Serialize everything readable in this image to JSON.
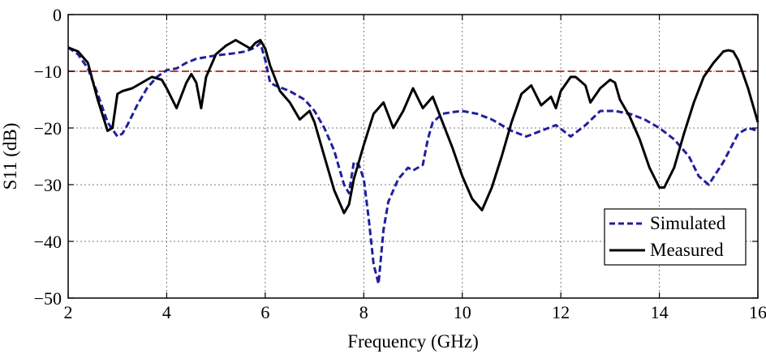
{
  "chart_data": {
    "type": "line",
    "xlabel": "Frequency (GHz)",
    "ylabel": "S11 (dB)",
    "xlim": [
      2,
      16
    ],
    "ylim": [
      -50,
      0
    ],
    "xticks": [
      2,
      4,
      6,
      8,
      10,
      12,
      14,
      16
    ],
    "yticks": [
      0,
      -10,
      -20,
      -30,
      -40,
      -50
    ],
    "xtick_labels": [
      "2",
      "4",
      "6",
      "8",
      "10",
      "12",
      "14",
      "16"
    ],
    "ytick_labels": [
      "0",
      "−10",
      "−20",
      "−30",
      "−40",
      "−50"
    ],
    "grid": true,
    "legend_position": "bottom-right",
    "reference_line": {
      "y": -10,
      "color": "#b22222",
      "style": "dashed"
    },
    "series": [
      {
        "name": "Simulated",
        "color": "#1f1f9e",
        "style": "dashed",
        "x": [
          2.0,
          2.2,
          2.4,
          2.6,
          2.8,
          3.0,
          3.1,
          3.2,
          3.4,
          3.6,
          3.8,
          4.0,
          4.2,
          4.4,
          4.6,
          4.8,
          5.0,
          5.2,
          5.4,
          5.6,
          5.8,
          5.9,
          6.0,
          6.1,
          6.2,
          6.5,
          6.8,
          7.0,
          7.2,
          7.4,
          7.5,
          7.6,
          7.7,
          7.8,
          7.9,
          8.0,
          8.1,
          8.2,
          8.3,
          8.4,
          8.5,
          8.7,
          8.9,
          9.0,
          9.2,
          9.3,
          9.4,
          9.6,
          9.8,
          10.0,
          10.3,
          10.6,
          11.0,
          11.3,
          11.6,
          11.9,
          12.2,
          12.5,
          12.8,
          13.1,
          13.4,
          13.7,
          14.0,
          14.3,
          14.6,
          14.8,
          15.0,
          15.3,
          15.6,
          15.8,
          16.0
        ],
        "values": [
          -5.8,
          -7.0,
          -9.5,
          -14.0,
          -19.0,
          -21.5,
          -21.0,
          -19.5,
          -16.0,
          -13.0,
          -11.0,
          -9.8,
          -9.5,
          -8.5,
          -7.8,
          -7.5,
          -7.2,
          -7.0,
          -6.8,
          -6.5,
          -5.8,
          -5.0,
          -8.0,
          -12.0,
          -12.5,
          -13.5,
          -15.0,
          -17.0,
          -20.0,
          -24.0,
          -27.0,
          -30.0,
          -31.5,
          -26.0,
          -26.5,
          -29.0,
          -36.0,
          -44.0,
          -47.5,
          -38.0,
          -33.0,
          -29.0,
          -27.0,
          -27.5,
          -26.5,
          -22.0,
          -19.0,
          -17.5,
          -17.2,
          -17.0,
          -17.5,
          -18.5,
          -20.5,
          -21.5,
          -20.5,
          -19.5,
          -21.5,
          -19.5,
          -17.0,
          -17.0,
          -17.5,
          -18.5,
          -20.0,
          -22.0,
          -25.0,
          -28.5,
          -30.0,
          -26.0,
          -21.0,
          -20.0,
          -20.5
        ]
      },
      {
        "name": "Measured",
        "color": "#000000",
        "style": "solid",
        "x": [
          2.0,
          2.2,
          2.4,
          2.6,
          2.8,
          2.9,
          3.0,
          3.1,
          3.3,
          3.5,
          3.6,
          3.7,
          3.9,
          4.0,
          4.2,
          4.4,
          4.5,
          4.6,
          4.7,
          4.8,
          5.0,
          5.2,
          5.4,
          5.6,
          5.7,
          5.8,
          5.9,
          6.0,
          6.1,
          6.3,
          6.5,
          6.7,
          6.9,
          7.0,
          7.2,
          7.4,
          7.6,
          7.7,
          7.8,
          8.0,
          8.2,
          8.4,
          8.6,
          8.8,
          9.0,
          9.2,
          9.4,
          9.6,
          9.8,
          10.0,
          10.2,
          10.4,
          10.6,
          10.8,
          11.0,
          11.2,
          11.4,
          11.6,
          11.8,
          11.9,
          12.0,
          12.2,
          12.3,
          12.5,
          12.6,
          12.8,
          13.0,
          13.1,
          13.2,
          13.4,
          13.6,
          13.8,
          14.0,
          14.1,
          14.3,
          14.5,
          14.7,
          14.9,
          15.1,
          15.3,
          15.4,
          15.5,
          15.6,
          15.8,
          16.0
        ],
        "values": [
          -5.8,
          -6.5,
          -8.5,
          -15.0,
          -20.5,
          -20.0,
          -14.0,
          -13.5,
          -13.0,
          -12.0,
          -11.5,
          -11.0,
          -11.5,
          -13.0,
          -16.5,
          -12.0,
          -10.5,
          -12.0,
          -16.5,
          -11.0,
          -7.0,
          -5.5,
          -4.5,
          -5.5,
          -6.0,
          -5.0,
          -4.5,
          -6.0,
          -9.0,
          -13.5,
          -15.5,
          -18.5,
          -17.0,
          -19.0,
          -25.0,
          -31.0,
          -35.0,
          -33.5,
          -29.0,
          -23.0,
          -17.5,
          -15.5,
          -20.0,
          -17.0,
          -13.0,
          -16.5,
          -14.5,
          -19.0,
          -23.5,
          -28.5,
          -32.5,
          -34.5,
          -30.5,
          -25.0,
          -19.0,
          -14.0,
          -12.5,
          -16.0,
          -14.5,
          -16.5,
          -13.5,
          -11.0,
          -11.0,
          -12.5,
          -15.5,
          -13.0,
          -11.5,
          -12.0,
          -15.0,
          -18.0,
          -22.0,
          -27.0,
          -30.5,
          -30.5,
          -27.0,
          -21.0,
          -15.5,
          -11.0,
          -8.5,
          -6.5,
          -6.3,
          -6.5,
          -8.0,
          -13.0,
          -19.0
        ]
      }
    ]
  }
}
